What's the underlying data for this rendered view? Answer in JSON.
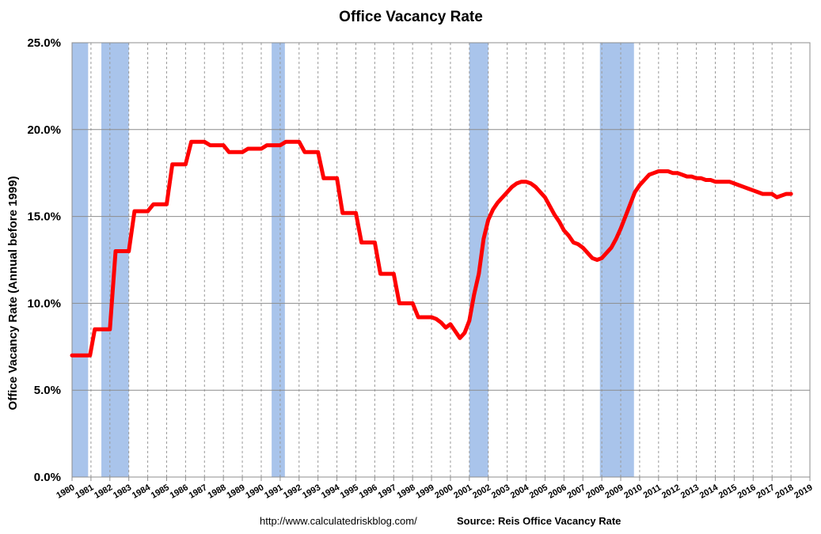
{
  "chart_data": {
    "type": "line",
    "title": "Office Vacancy Rate",
    "xlabel": "",
    "ylabel": "Office Vacancy Rate (Annual before 1999)",
    "xlim": [
      1980,
      2019
    ],
    "ylim": [
      0,
      25
    ],
    "x_ticks": [
      "1980",
      "1981",
      "1982",
      "1983",
      "1984",
      "1985",
      "1986",
      "1987",
      "1988",
      "1989",
      "1990",
      "1991",
      "1992",
      "1993",
      "1994",
      "1995",
      "1996",
      "1997",
      "1998",
      "1999",
      "2000",
      "2001",
      "2002",
      "2003",
      "2004",
      "2005",
      "2006",
      "2007",
      "2008",
      "2009",
      "2010",
      "2011",
      "2012",
      "2013",
      "2014",
      "2015",
      "2016",
      "2017",
      "2018",
      "2019"
    ],
    "y_ticks": [
      "0.0%",
      "5.0%",
      "10.0%",
      "15.0%",
      "20.0%",
      "25.0%"
    ],
    "grid": true,
    "line_color": "#ff0000",
    "recession_color": "#a9c4eb",
    "recessions": [
      [
        1980.0,
        1980.85
      ],
      [
        1981.55,
        1983.0
      ],
      [
        1990.55,
        1991.25
      ],
      [
        2001.0,
        2002.0
      ],
      [
        2007.9,
        2009.7
      ]
    ],
    "series": [
      {
        "x": [
          1980,
          1980.95,
          1981.2,
          1982,
          1982.3,
          1983,
          1983.3,
          1984,
          1984.3,
          1985,
          1985.3,
          1986,
          1986.3,
          1987,
          1987.3,
          1988,
          1988.3,
          1989,
          1989.3,
          1990,
          1990.3,
          1991,
          1991.3,
          1992,
          1992.3,
          1993,
          1993.3,
          1994,
          1994.3,
          1995,
          1995.3,
          1996,
          1996.3,
          1997,
          1997.3,
          1998,
          1998.3,
          1999,
          1999.25,
          1999.5,
          1999.75,
          2000,
          2000.25,
          2000.5,
          2000.75,
          2001,
          2001.25,
          2001.5,
          2001.75,
          2002,
          2002.25,
          2002.5,
          2002.75,
          2003,
          2003.25,
          2003.5,
          2003.75,
          2004,
          2004.25,
          2004.5,
          2004.75,
          2005,
          2005.25,
          2005.5,
          2005.75,
          2006,
          2006.25,
          2006.5,
          2006.75,
          2007,
          2007.25,
          2007.5,
          2007.75,
          2008,
          2008.25,
          2008.5,
          2008.75,
          2009,
          2009.25,
          2009.5,
          2009.75,
          2010,
          2010.25,
          2010.5,
          2010.75,
          2011,
          2011.25,
          2011.5,
          2011.75,
          2012,
          2012.25,
          2012.5,
          2012.75,
          2013,
          2013.25,
          2013.5,
          2013.75,
          2014,
          2014.25,
          2014.5,
          2014.75,
          2015,
          2015.25,
          2015.5,
          2015.75,
          2016,
          2016.25,
          2016.5,
          2016.75,
          2017,
          2017.25,
          2017.5,
          2017.75,
          2018
        ],
        "values": [
          7.0,
          7.0,
          8.5,
          8.5,
          13.0,
          13.0,
          15.3,
          15.3,
          15.7,
          15.7,
          18.0,
          18.0,
          19.3,
          19.3,
          19.1,
          19.1,
          18.7,
          18.7,
          18.9,
          18.9,
          19.1,
          19.1,
          19.3,
          19.3,
          18.7,
          18.7,
          17.2,
          17.2,
          15.2,
          15.2,
          13.5,
          13.5,
          11.7,
          11.7,
          10.0,
          10.0,
          9.2,
          9.2,
          9.1,
          8.9,
          8.6,
          8.8,
          8.4,
          8.0,
          8.3,
          9.0,
          10.5,
          11.7,
          13.7,
          14.8,
          15.4,
          15.8,
          16.1,
          16.4,
          16.7,
          16.9,
          17.0,
          17.0,
          16.9,
          16.7,
          16.4,
          16.1,
          15.6,
          15.1,
          14.7,
          14.2,
          13.9,
          13.5,
          13.4,
          13.2,
          12.9,
          12.6,
          12.5,
          12.6,
          12.9,
          13.2,
          13.7,
          14.3,
          15.0,
          15.7,
          16.4,
          16.8,
          17.1,
          17.4,
          17.5,
          17.6,
          17.6,
          17.6,
          17.5,
          17.5,
          17.4,
          17.3,
          17.3,
          17.2,
          17.2,
          17.1,
          17.1,
          17.0,
          17.0,
          17.0,
          17.0,
          16.9,
          16.8,
          16.7,
          16.6,
          16.5,
          16.4,
          16.3,
          16.3,
          16.3,
          16.1,
          16.2,
          16.3,
          16.3
        ]
      }
    ]
  },
  "footer": {
    "url": "http://www.calculatedriskblog.com/",
    "source": "Source: Reis Office Vacancy Rate"
  }
}
